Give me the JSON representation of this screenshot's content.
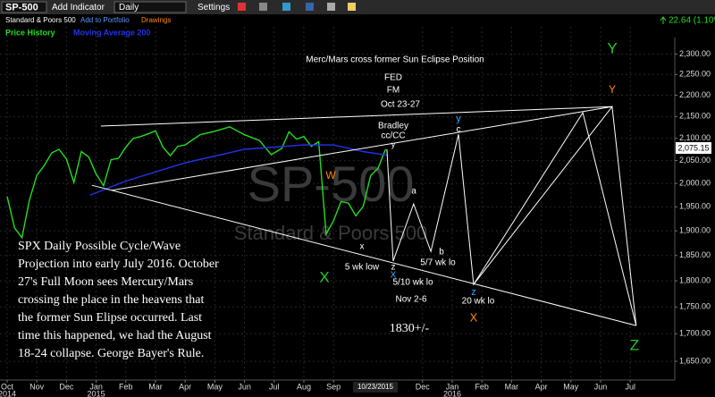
{
  "toolbar": {
    "symbol": "SP-500",
    "add_indicator": "Add Indicator",
    "interval": "Daily",
    "settings": "Settings",
    "name": "Standard & Poors 500",
    "add_portfolio": "Add to Portfolio",
    "drawings": "Drawings",
    "change": "22.64 (1.10%)"
  },
  "chart_data": {
    "type": "line",
    "log_scale": true,
    "grid": true,
    "watermark": "SP-500",
    "watermark_sub": "Standard & Poors 500",
    "last_price_label": "2,075.15",
    "cursor_date": "10/23/2015",
    "xlim": [
      -0.24,
      22.5
    ],
    "ylim": [
      1617,
      2392
    ],
    "xticks": [
      {
        "value": 0,
        "label": "Oct"
      },
      {
        "value": 1,
        "label": "Nov"
      },
      {
        "value": 2,
        "label": "Dec"
      },
      {
        "value": 3,
        "label": "Jan"
      },
      {
        "value": 4,
        "label": "Feb"
      },
      {
        "value": 5,
        "label": "Mar"
      },
      {
        "value": 6,
        "label": "Apr"
      },
      {
        "value": 7,
        "label": "May"
      },
      {
        "value": 8,
        "label": "Jun"
      },
      {
        "value": 9,
        "label": "Jul"
      },
      {
        "value": 10,
        "label": "Aug"
      },
      {
        "value": 11,
        "label": "Sep"
      },
      {
        "value": 14,
        "label": "Dec"
      },
      {
        "value": 15,
        "label": "Jan"
      },
      {
        "value": 16,
        "label": "Feb"
      },
      {
        "value": 17,
        "label": "Mar"
      },
      {
        "value": 18,
        "label": "Apr"
      },
      {
        "value": 19,
        "label": "May"
      },
      {
        "value": 20,
        "label": "Jun"
      },
      {
        "value": 21,
        "label": "Jul"
      }
    ],
    "year_labels": [
      {
        "value": 0,
        "label": "2014"
      },
      {
        "value": 3,
        "label": "2015"
      },
      {
        "value": 15,
        "label": "2016"
      }
    ],
    "yticks": [
      {
        "value": 1650,
        "label": "1,650.00"
      },
      {
        "value": 1700,
        "label": "1,700.00"
      },
      {
        "value": 1750,
        "label": "1,750.00"
      },
      {
        "value": 1800,
        "label": "1,800.00"
      },
      {
        "value": 1850,
        "label": "1,850.00"
      },
      {
        "value": 1900,
        "label": "1,900.00"
      },
      {
        "value": 1950,
        "label": "1,950.00"
      },
      {
        "value": 2000,
        "label": "2,000.00"
      },
      {
        "value": 2050,
        "label": "2,050.00"
      },
      {
        "value": 2100,
        "label": "2,100.00"
      },
      {
        "value": 2150,
        "label": "2,150.00"
      },
      {
        "value": 2200,
        "label": "2,200.00"
      },
      {
        "value": 2250,
        "label": "2,250.00"
      },
      {
        "value": 2300,
        "label": "2,300.00"
      }
    ],
    "series": [
      {
        "name": "Price History",
        "color": "#22dd22",
        "x": [
          0,
          0.25,
          0.5,
          0.75,
          1,
          1.25,
          1.5,
          1.75,
          2,
          2.25,
          2.5,
          2.75,
          3,
          3.25,
          3.5,
          3.75,
          4,
          4.25,
          4.5,
          4.75,
          5,
          5.25,
          5.5,
          5.75,
          6,
          6.5,
          7,
          7.5,
          8,
          8.5,
          8.9,
          9.25,
          9.5,
          9.75,
          10,
          10.25,
          10.5,
          10.75,
          11,
          11.25,
          11.5,
          11.75,
          12,
          12.25,
          12.5,
          12.75
        ],
        "values": [
          1972,
          1906,
          1886,
          1964,
          2018,
          2039,
          2067,
          2075,
          2053,
          2002,
          2070,
          2058,
          2020,
          1995,
          2052,
          2055,
          2080,
          2100,
          2104,
          2110,
          2117,
          2080,
          2061,
          2082,
          2085,
          2108,
          2116,
          2126,
          2108,
          2095,
          2063,
          2077,
          2115,
          2098,
          2104,
          2082,
          2092,
          1893,
          1921,
          1961,
          1958,
          1931,
          1951,
          2017,
          2033,
          2075
        ]
      },
      {
        "name": "Moving Average 200",
        "color": "#2233ee",
        "x": [
          2.8,
          4,
          6,
          8,
          10,
          11,
          12,
          12.8
        ],
        "values": [
          1975,
          2005,
          2045,
          2075,
          2085,
          2085,
          2070,
          2062
        ]
      },
      {
        "color": "#ffffff",
        "x": [
          3.16,
          20.39
        ],
        "values": [
          2128,
          2173
        ]
      },
      {
        "color": "#ffffff",
        "x": [
          3.52,
          20.39
        ],
        "values": [
          1985,
          2173
        ]
      },
      {
        "color": "#ffffff",
        "x": [
          2.86,
          21.2
        ],
        "values": [
          1996,
          1715
        ]
      },
      {
        "color": "#ffffff",
        "x": [
          12.8,
          13.01,
          13.7,
          14.28,
          15.21,
          15.72,
          19.4,
          21.2
        ],
        "values": [
          2075,
          1839,
          1956,
          1858,
          2109,
          1793,
          2159,
          1715
        ]
      },
      {
        "color": "#ffffff",
        "x": [
          15.72,
          20.39,
          21.2
        ],
        "values": [
          1793,
          2173,
          1715
        ]
      }
    ],
    "annotations": [
      "Merc/Mars cross former Sun Eclipse Position",
      "FED",
      "FM",
      "Oct 23-27",
      "Bradley",
      "cc/CC",
      "y",
      "Y",
      "Y",
      "y",
      "c",
      "W",
      "a",
      "b",
      "x",
      "z",
      "X",
      "5 wk low",
      "5/10 wk lo",
      "5/7 wk lo",
      "Nov 2-6",
      "z",
      "20 wk lo",
      "X",
      "X",
      "1830+/-",
      "Z"
    ],
    "note": [
      "SPX Daily Possible Cycle/Wave",
      "Projection into early July 2016. October",
      "27's Full Moon sees Mercury/Mars",
      "crossing the place in the heavens that",
      "the former Sun Elipse occurred.  Last",
      "time this happened, we had the August",
      "18-24 collapse. George Bayer's Rule."
    ]
  }
}
